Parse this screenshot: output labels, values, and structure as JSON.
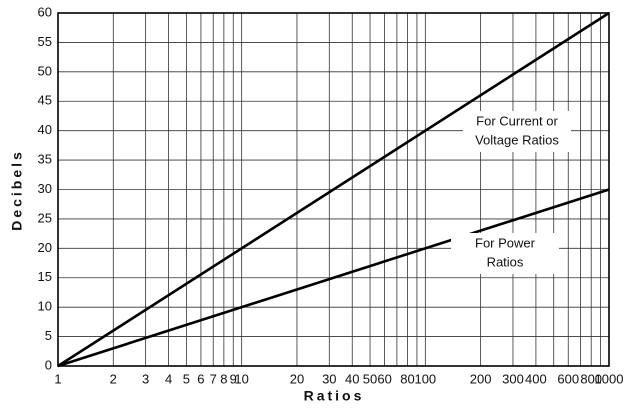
{
  "chart_data": {
    "type": "line",
    "x_label": "Ratios",
    "y_label": "Decibels",
    "xscale": "log",
    "xlim": [
      1,
      1000
    ],
    "ylim": [
      0,
      60
    ],
    "xticks": [
      1,
      2,
      3,
      4,
      5,
      6,
      7,
      8,
      9,
      10,
      20,
      30,
      40,
      50,
      60,
      80,
      100,
      200,
      300,
      400,
      600,
      800,
      1000
    ],
    "minor_xticks": [
      70,
      90,
      500,
      700,
      900
    ],
    "yticks": [
      0,
      5,
      10,
      15,
      20,
      25,
      30,
      35,
      40,
      45,
      50,
      55,
      60
    ],
    "grid": true,
    "series": [
      {
        "name": "For Current or Voltage Ratios",
        "color": "#000000",
        "x": [
          1,
          1000
        ],
        "values": [
          0,
          60
        ]
      },
      {
        "name": "For Power Ratios",
        "color": "#000000",
        "x": [
          1,
          1000
        ],
        "values": [
          0,
          30
        ]
      }
    ],
    "annotations": [
      {
        "lines": [
          "For Current or",
          "Voltage Ratios"
        ]
      },
      {
        "lines": [
          "For Power",
          "Ratios"
        ]
      }
    ]
  }
}
